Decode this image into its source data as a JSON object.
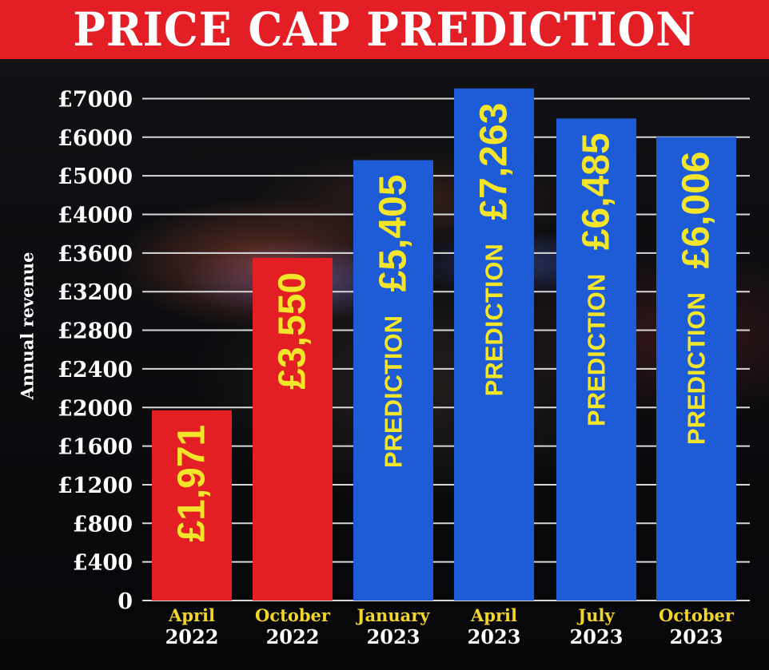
{
  "title": "PRICE CAP PREDICTION",
  "colors": {
    "title_bg": "#e31e24",
    "actual": "#e31e24",
    "prediction": "#1e5bd6",
    "label_yellow": "#f2e52a",
    "background": "#0b0b0d"
  },
  "chart_data": {
    "type": "bar",
    "title": "PRICE CAP PREDICTION",
    "ylabel": "Annual revenue",
    "xlabel": "",
    "yticks": [
      "0",
      "£400",
      "£800",
      "£1200",
      "£1600",
      "£2000",
      "£2400",
      "£2800",
      "£3200",
      "£3600",
      "£4000",
      "£5000",
      "£6000",
      "£7000"
    ],
    "y_scale_note": "non-linear axis: 400 steps up to 4000, then 1000 steps",
    "grid": true,
    "categories": [
      {
        "month": "April",
        "year": "2022"
      },
      {
        "month": "October",
        "year": "2022"
      },
      {
        "month": "January",
        "year": "2023"
      },
      {
        "month": "April",
        "year": "2023"
      },
      {
        "month": "July",
        "year": "2023"
      },
      {
        "month": "October",
        "year": "2023"
      }
    ],
    "values": [
      1971,
      3550,
      5405,
      7263,
      6485,
      6006
    ],
    "value_labels": [
      "£1,971",
      "£3,550",
      "£5,405",
      "£7,263",
      "£6,485",
      "£6,006"
    ],
    "bar_notes": [
      "",
      "",
      "PREDICTION",
      "PREDICTION",
      "PREDICTION",
      "PREDICTION"
    ],
    "bar_colors": [
      "#e31e24",
      "#e31e24",
      "#1e5bd6",
      "#1e5bd6",
      "#1e5bd6",
      "#1e5bd6"
    ]
  }
}
